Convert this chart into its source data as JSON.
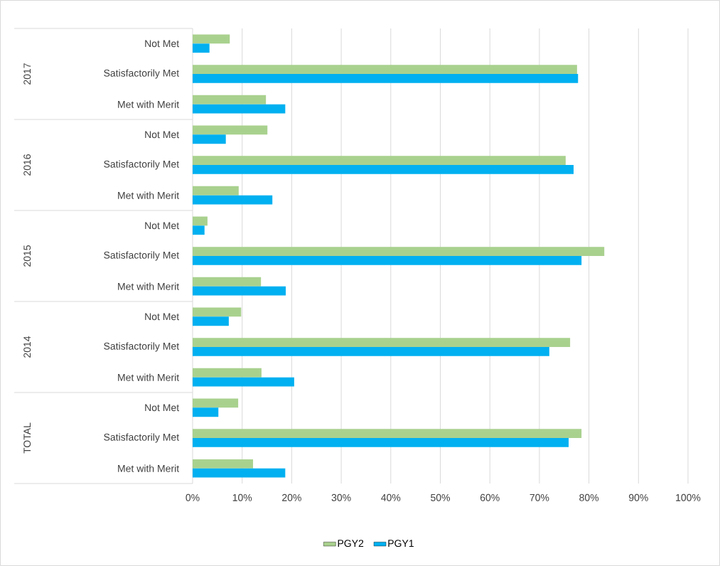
{
  "chart_data": {
    "type": "bar",
    "orientation": "horizontal",
    "categories": [
      "Not Met",
      "Satisfactorily Met",
      "Met with Merit",
      "Not Met",
      "Satisfactorily Met",
      "Met with Merit",
      "Not Met",
      "Satisfactorily Met",
      "Met with Merit",
      "Not Met",
      "Satisfactorily Met",
      "Met with Merit",
      "Not Met",
      "Satisfactorily Met",
      "Met with Merit"
    ],
    "annotations": [
      "2017",
      "2016",
      "2015",
      "2014",
      "TOTAL"
    ],
    "series": [
      {
        "name": "PGY2",
        "color": "#a9d18e",
        "values": [
          7.5,
          77.6,
          14.8,
          15.1,
          75.3,
          9.3,
          3.0,
          83.1,
          13.8,
          9.8,
          76.2,
          13.9,
          9.2,
          78.5,
          12.2
        ]
      },
      {
        "name": "PGY1",
        "color": "#00b0f0",
        "values": [
          3.4,
          77.8,
          18.7,
          6.7,
          76.9,
          16.1,
          2.4,
          78.5,
          18.8,
          7.3,
          72.0,
          20.5,
          5.2,
          75.9,
          18.7
        ]
      }
    ],
    "xlim": [
      0,
      100
    ],
    "xticks": [
      {
        "value": 0,
        "label": "0%"
      },
      {
        "value": 10,
        "label": "10%"
      },
      {
        "value": 20,
        "label": "20%"
      },
      {
        "value": 30,
        "label": "30%"
      },
      {
        "value": 40,
        "label": "40%"
      },
      {
        "value": 50,
        "label": "50%"
      },
      {
        "value": 60,
        "label": "60%"
      },
      {
        "value": 70,
        "label": "70%"
      },
      {
        "value": 80,
        "label": "80%"
      },
      {
        "value": 90,
        "label": "90%"
      },
      {
        "value": 100,
        "label": "100%"
      }
    ],
    "grid": "x",
    "legend": "bottom"
  }
}
